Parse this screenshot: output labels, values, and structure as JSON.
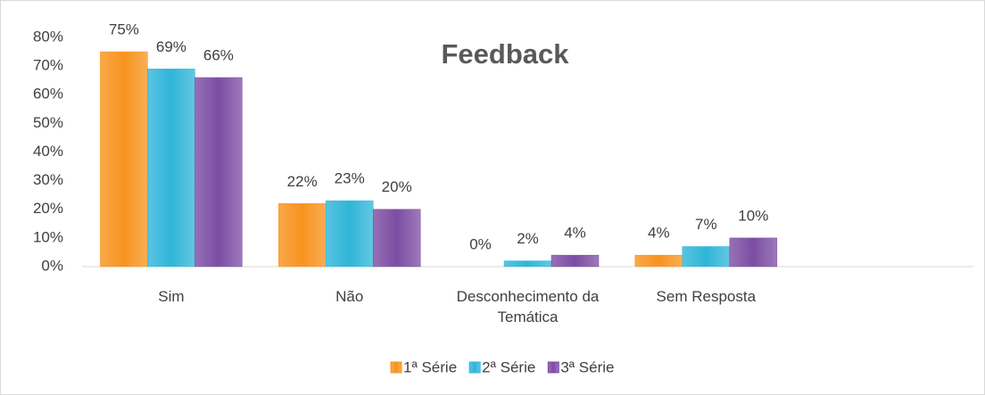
{
  "chart_data": {
    "type": "bar",
    "title": "Feedback",
    "categories": [
      "Sim",
      "Não",
      "Desconhecimento da Temática",
      "Sem Resposta",
      null
    ],
    "series": [
      {
        "name": "1ª Série",
        "color": "#f7931e",
        "values": [
          75,
          22,
          0,
          4,
          null
        ],
        "value_labels": [
          "75%",
          "22%",
          "0%",
          "4%",
          null
        ]
      },
      {
        "name": "2ª Série",
        "color": "#2fb5d8",
        "values": [
          69,
          23,
          2,
          7,
          null
        ],
        "value_labels": [
          "69%",
          "23%",
          "2%",
          "7%",
          null
        ]
      },
      {
        "name": "3ª Série",
        "color": "#7c4da3",
        "values": [
          66,
          20,
          4,
          10,
          null
        ],
        "value_labels": [
          "66%",
          "20%",
          "4%",
          "10%",
          null
        ]
      }
    ],
    "ylim": [
      0,
      80
    ],
    "yticks": [
      {
        "value": 0,
        "label": "0%"
      },
      {
        "value": 10,
        "label": "10%"
      },
      {
        "value": 20,
        "label": "20%"
      },
      {
        "value": 30,
        "label": "30%"
      },
      {
        "value": 40,
        "label": "40%"
      },
      {
        "value": 50,
        "label": "50%"
      },
      {
        "value": 60,
        "label": "60%"
      },
      {
        "value": 70,
        "label": "70%"
      },
      {
        "value": 80,
        "label": "80%"
      }
    ],
    "grid": false,
    "legend": "bottom"
  }
}
